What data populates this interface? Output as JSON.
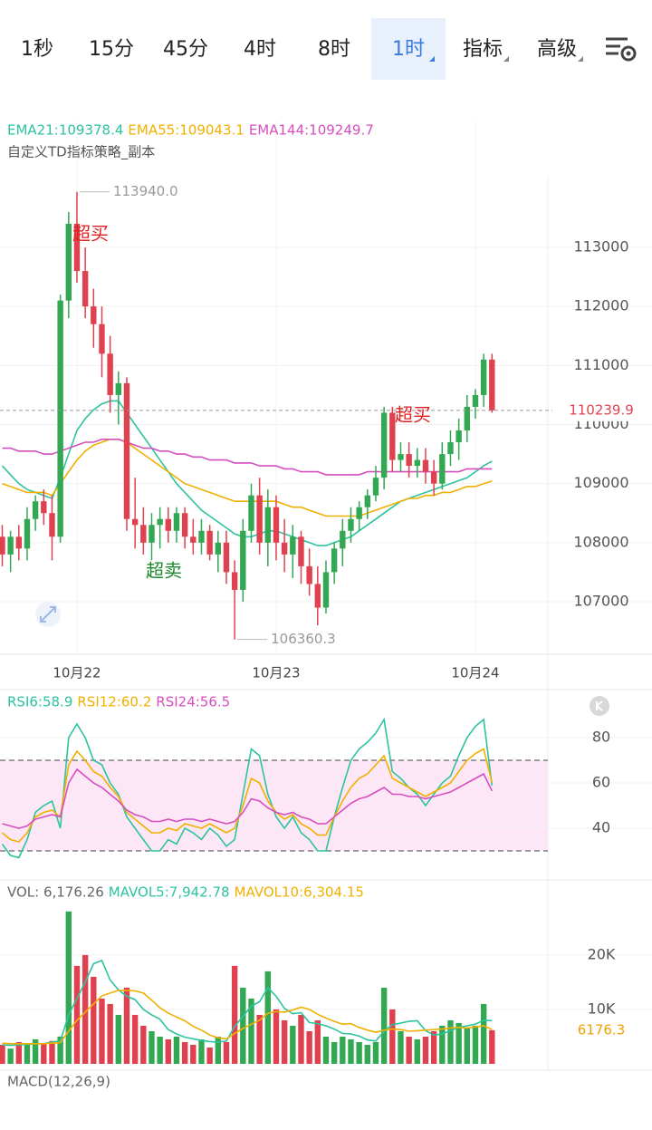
{
  "toolbar": {
    "tabs": [
      "1秒",
      "15分",
      "45分",
      "4时",
      "8时",
      "1时",
      "指标",
      "高级"
    ],
    "active": 5
  },
  "chart_data": [
    {
      "type": "candlestick",
      "subtitle": "自定义TD指标策略_副本",
      "up_color": "#33a852",
      "down_color": "#e0414f",
      "xlim": [
        -0.27,
        65.73
      ],
      "xticks": [
        {
          "value": 9,
          "label": "10月22"
        },
        {
          "value": 33,
          "label": "10月23"
        },
        {
          "value": 57,
          "label": "10月24"
        }
      ],
      "ylim": [
        106156,
        114212
      ],
      "yticks": [
        107000,
        108000,
        109000,
        110000,
        111000,
        112000,
        113000
      ],
      "open": [
        108100,
        107800,
        108100,
        107900,
        108400,
        108700,
        108500,
        108100,
        112100,
        113400,
        112600,
        112000,
        111700,
        111200,
        110500,
        110700,
        108400,
        108300,
        108000,
        108300,
        108400,
        108200,
        108500,
        108100,
        108000,
        108200,
        107800,
        108000,
        107500,
        107200,
        108200,
        108800,
        108000,
        108600,
        108000,
        107800,
        108100,
        107600,
        107300,
        106900,
        107500,
        107900,
        108200,
        108400,
        108600,
        108800,
        109100,
        110200,
        109400,
        109500,
        109300,
        109400,
        109200,
        109000,
        109500,
        109700,
        109900,
        110300,
        110500,
        111100
      ],
      "high": [
        108300,
        108200,
        108300,
        108600,
        108800,
        108900,
        108800,
        112200,
        113600,
        113940,
        113000,
        112300,
        112000,
        111500,
        110900,
        110800,
        109100,
        108600,
        108500,
        108600,
        108600,
        108600,
        108600,
        108400,
        108400,
        108300,
        108200,
        108200,
        107700,
        108400,
        109000,
        109100,
        108900,
        108800,
        108400,
        108300,
        108200,
        107900,
        107600,
        107700,
        108000,
        108400,
        108600,
        108700,
        108900,
        109300,
        110300,
        110300,
        109700,
        109700,
        109600,
        109600,
        109400,
        109700,
        109900,
        110100,
        110500,
        110600,
        111200,
        111200
      ],
      "low": [
        107600,
        107500,
        107700,
        107700,
        108200,
        108300,
        107700,
        108000,
        111800,
        112400,
        111800,
        111300,
        110800,
        110200,
        110000,
        108200,
        107900,
        107800,
        107700,
        107900,
        108000,
        108000,
        107900,
        107800,
        107800,
        107700,
        107500,
        107300,
        106360.3,
        107000,
        108000,
        107800,
        107600,
        107700,
        107500,
        107400,
        107300,
        107100,
        106600,
        106800,
        107300,
        107600,
        108000,
        108200,
        108400,
        108700,
        108900,
        109200,
        109200,
        109100,
        109100,
        109000,
        108800,
        108900,
        109300,
        109400,
        109700,
        110100,
        110300,
        110200
      ],
      "close": [
        107800,
        108100,
        107900,
        108400,
        108700,
        108500,
        108100,
        112100,
        113400,
        112600,
        112000,
        111700,
        111200,
        110500,
        110700,
        108400,
        108300,
        108000,
        108300,
        108400,
        108200,
        108500,
        108100,
        108000,
        108200,
        107800,
        108000,
        107500,
        107200,
        108200,
        108800,
        108000,
        108600,
        108000,
        107800,
        108100,
        107600,
        107300,
        106900,
        107500,
        107900,
        108200,
        108400,
        108600,
        108800,
        109100,
        110200,
        109400,
        109500,
        109300,
        109400,
        109200,
        109000,
        109500,
        109700,
        109900,
        110300,
        110500,
        111100,
        110239.9
      ],
      "series": [
        {
          "name": "EMA21",
          "label": "EMA21:109378.4",
          "color": "#2cc3a0",
          "values": [
            109300,
            109150,
            109000,
            108900,
            108850,
            108800,
            108750,
            109100,
            109500,
            109900,
            110100,
            110250,
            110350,
            110400,
            110400,
            110200,
            110000,
            109800,
            109600,
            109400,
            109200,
            109000,
            108850,
            108700,
            108550,
            108450,
            108350,
            108250,
            108150,
            108100,
            108100,
            108150,
            108200,
            108200,
            108150,
            108100,
            108050,
            108000,
            107950,
            107950,
            108000,
            108050,
            108100,
            108200,
            108300,
            108400,
            108500,
            108600,
            108700,
            108750,
            108800,
            108850,
            108900,
            108950,
            109000,
            109050,
            109100,
            109200,
            109300,
            109378.4
          ]
        },
        {
          "name": "EMA55",
          "label": "EMA55:109043.1",
          "color": "#f0b000",
          "values": [
            109000,
            108950,
            108900,
            108850,
            108850,
            108850,
            108800,
            109000,
            109200,
            109400,
            109550,
            109650,
            109700,
            109750,
            109750,
            109700,
            109600,
            109500,
            109400,
            109300,
            109200,
            109100,
            109000,
            108950,
            108900,
            108850,
            108800,
            108750,
            108700,
            108700,
            108700,
            108700,
            108700,
            108700,
            108650,
            108600,
            108600,
            108550,
            108500,
            108450,
            108450,
            108450,
            108450,
            108450,
            108500,
            108550,
            108600,
            108650,
            108700,
            108750,
            108750,
            108800,
            108800,
            108850,
            108850,
            108900,
            108950,
            108950,
            109000,
            109043.1
          ]
        },
        {
          "name": "EMA144",
          "label": "EMA144:109249.7",
          "color": "#d64fbf",
          "values": [
            109600,
            109600,
            109550,
            109550,
            109550,
            109500,
            109500,
            109550,
            109600,
            109650,
            109700,
            109700,
            109750,
            109750,
            109750,
            109700,
            109650,
            109600,
            109600,
            109550,
            109550,
            109500,
            109500,
            109450,
            109450,
            109400,
            109400,
            109400,
            109350,
            109350,
            109350,
            109300,
            109300,
            109300,
            109250,
            109250,
            109200,
            109200,
            109200,
            109150,
            109150,
            109150,
            109150,
            109150,
            109200,
            109200,
            109200,
            109200,
            109200,
            109200,
            109200,
            109200,
            109200,
            109200,
            109200,
            109200,
            109250,
            109250,
            109250,
            109249.7
          ]
        }
      ],
      "annotations": [
        "113940.0",
        "106360.3"
      ],
      "signals": [
        {
          "text": "超买",
          "color": "#e02020"
        },
        {
          "text": "超买",
          "color": "#e02020"
        },
        {
          "text": "超卖",
          "color": "#1a8a2a"
        }
      ]
    },
    {
      "type": "line",
      "xlim": [
        -0.27,
        65.73
      ],
      "ylim": [
        20,
        94
      ],
      "yticks": [
        40,
        60,
        80
      ],
      "bands": [
        30,
        70
      ],
      "band_color": "#fde6f5",
      "series": [
        {
          "name": "RSI6",
          "label": "RSI6:58.9",
          "color": "#2cc3a0",
          "values": [
            33,
            28,
            27,
            35,
            47,
            50,
            52,
            40,
            80,
            86,
            80,
            70,
            68,
            60,
            55,
            45,
            40,
            35,
            30,
            30,
            35,
            33,
            40,
            38,
            35,
            40,
            37,
            32,
            35,
            55,
            75,
            72,
            55,
            45,
            40,
            45,
            38,
            35,
            30,
            30,
            45,
            58,
            70,
            75,
            78,
            82,
            88,
            65,
            62,
            58,
            55,
            50,
            55,
            60,
            63,
            72,
            80,
            85,
            88,
            58.9
          ]
        },
        {
          "name": "RSI12",
          "label": "RSI12:60.2",
          "color": "#f0b000",
          "values": [
            38,
            35,
            34,
            38,
            45,
            47,
            48,
            45,
            68,
            74,
            70,
            65,
            63,
            58,
            54,
            47,
            44,
            41,
            38,
            38,
            40,
            39,
            42,
            41,
            40,
            42,
            40,
            38,
            40,
            50,
            62,
            60,
            52,
            47,
            44,
            46,
            42,
            40,
            37,
            37,
            45,
            52,
            58,
            62,
            64,
            68,
            72,
            62,
            60,
            58,
            56,
            54,
            56,
            58,
            60,
            65,
            70,
            73,
            75,
            60.2
          ]
        },
        {
          "name": "RSI24",
          "label": "RSI24:56.5",
          "color": "#d64fbf",
          "values": [
            42,
            41,
            40,
            41,
            44,
            45,
            46,
            45,
            60,
            66,
            63,
            60,
            58,
            55,
            52,
            48,
            46,
            45,
            43,
            43,
            44,
            43,
            44,
            44,
            43,
            44,
            43,
            42,
            43,
            47,
            53,
            52,
            49,
            47,
            46,
            47,
            45,
            44,
            42,
            42,
            45,
            48,
            51,
            53,
            54,
            56,
            58,
            55,
            55,
            54,
            54,
            53,
            54,
            55,
            56,
            58,
            60,
            62,
            64,
            56.5
          ]
        }
      ]
    },
    {
      "type": "bar",
      "name": "VOL",
      "label": "VOL: 6,176.26",
      "current_label": "6176.3",
      "current_color": "#f0a000",
      "xlim": [
        -0.27,
        65.73
      ],
      "ylim": [
        0,
        30800
      ],
      "yticks": [
        {
          "value": 10000,
          "label": "10K"
        },
        {
          "value": 20000,
          "label": "20K"
        }
      ],
      "values": [
        3500,
        2800,
        4000,
        3500,
        4500,
        3800,
        4200,
        5000,
        28000,
        18000,
        20000,
        16000,
        12000,
        11000,
        9000,
        14000,
        9000,
        7000,
        6000,
        5000,
        4500,
        5000,
        4000,
        3500,
        4500,
        3000,
        5000,
        4000,
        18000,
        14000,
        12000,
        9000,
        17000,
        10000,
        8000,
        7000,
        9000,
        6000,
        8000,
        5000,
        4000,
        5000,
        4500,
        4000,
        3500,
        4000,
        14000,
        10000,
        6000,
        5000,
        4500,
        5000,
        6000,
        7000,
        8000,
        7500,
        6500,
        7000,
        11000,
        6176.26
      ],
      "series": [
        {
          "name": "MAVOL5",
          "label": "MAVOL5:7,942.78",
          "color": "#2cc3a0",
          "values": [
            3500,
            3400,
            3500,
            3600,
            3700,
            3700,
            4000,
            4200,
            9000,
            12000,
            15000,
            18400,
            19000,
            15400,
            13600,
            12400,
            11800,
            10000,
            9000,
            8200,
            6300,
            5500,
            4900,
            4600,
            4300,
            4100,
            4000,
            4200,
            6900,
            8700,
            10600,
            11400,
            14000,
            12400,
            10200,
            9200,
            9400,
            7600,
            7400,
            7000,
            6400,
            5600,
            5500,
            5100,
            4400,
            4200,
            6000,
            7200,
            7500,
            7800,
            7900,
            6100,
            5300,
            5500,
            6100,
            6700,
            7000,
            7300,
            8000,
            7942.78
          ]
        },
        {
          "name": "MAVOL10",
          "label": "MAVOL10:6,304.15",
          "color": "#f0b000",
          "values": [
            3800,
            3700,
            3700,
            3700,
            3700,
            3700,
            3800,
            3900,
            6000,
            8000,
            9500,
            11000,
            12500,
            13000,
            13500,
            13500,
            13400,
            13000,
            11700,
            10300,
            9300,
            8600,
            7900,
            6900,
            6200,
            5300,
            4800,
            4600,
            5600,
            6500,
            7300,
            8000,
            9300,
            9600,
            9500,
            9900,
            10400,
            10000,
            9100,
            8400,
            7800,
            7300,
            7400,
            6700,
            6200,
            5800,
            6200,
            6400,
            6300,
            6000,
            6100,
            6200,
            6300,
            6400,
            6600,
            6700,
            6600,
            6800,
            7000,
            6304.15
          ]
        }
      ]
    },
    {
      "type": "macd",
      "label": "MACD(12,26,9)"
    }
  ]
}
